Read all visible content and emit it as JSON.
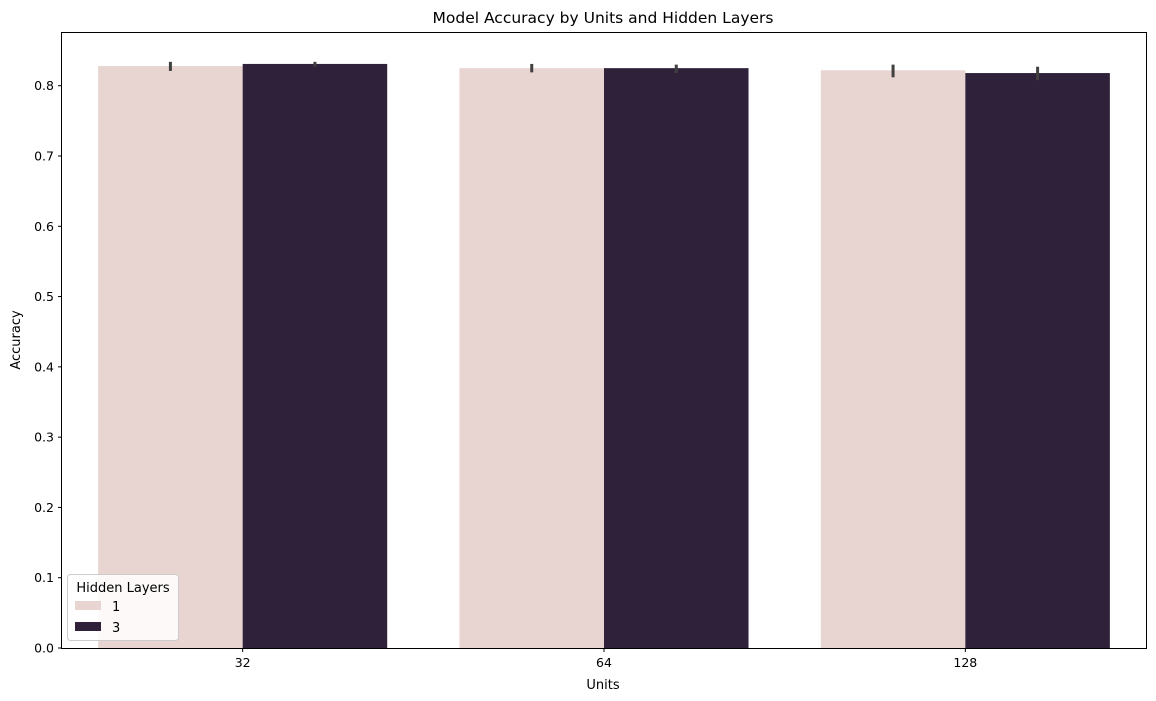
{
  "chart_data": {
    "type": "bar",
    "title": "Model Accuracy by Units and Hidden Layers",
    "xlabel": "Units",
    "ylabel": "Accuracy",
    "categories": [
      "32",
      "64",
      "128"
    ],
    "ylim": [
      0,
      0.875
    ],
    "yticks": [
      0.0,
      0.1,
      0.2,
      0.3,
      0.4,
      0.5,
      0.6,
      0.7,
      0.8
    ],
    "ytick_labels": [
      "0.0",
      "0.1",
      "0.2",
      "0.3",
      "0.4",
      "0.5",
      "0.6",
      "0.7",
      "0.8"
    ],
    "grid": false,
    "legend": {
      "title": "Hidden Layers",
      "placement": "lower-left"
    },
    "series": [
      {
        "name": "1",
        "color": "#e8d5d1",
        "values": [
          0.828,
          0.825,
          0.822
        ],
        "error_low": [
          0.821,
          0.819,
          0.812
        ],
        "error_high": [
          0.834,
          0.831,
          0.83
        ]
      },
      {
        "name": "3",
        "color": "#2f2139",
        "values": [
          0.831,
          0.825,
          0.818
        ],
        "error_low": [
          0.827,
          0.818,
          0.808
        ],
        "error_high": [
          0.834,
          0.83,
          0.827
        ]
      }
    ],
    "errorbar_color": "#404040"
  }
}
